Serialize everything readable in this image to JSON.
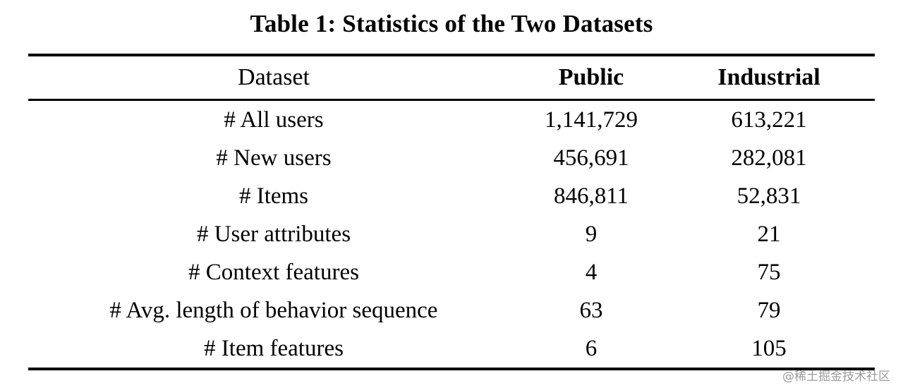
{
  "title": "Table 1: Statistics of the Two Datasets",
  "table": {
    "headers": {
      "dataset": "Dataset",
      "public": "Public",
      "industrial": "Industrial"
    },
    "rows": [
      {
        "label": "# All users",
        "public": "1,141,729",
        "industrial": "613,221"
      },
      {
        "label": "# New users",
        "public": "456,691",
        "industrial": "282,081"
      },
      {
        "label": "# Items",
        "public": "846,811",
        "industrial": "52,831"
      },
      {
        "label": "# User attributes",
        "public": "9",
        "industrial": "21"
      },
      {
        "label": "# Context features",
        "public": "4",
        "industrial": "75"
      },
      {
        "label": "# Avg. length of behavior sequence",
        "public": "63",
        "industrial": "79"
      },
      {
        "label": "# Item features",
        "public": "6",
        "industrial": "105"
      }
    ]
  },
  "watermark": "@稀土掘金技术社区",
  "chart_data": {
    "type": "table",
    "title": "Table 1: Statistics of the Two Datasets",
    "columns": [
      "Dataset",
      "Public",
      "Industrial"
    ],
    "rows": [
      [
        "# All users",
        "1,141,729",
        "613,221"
      ],
      [
        "# New users",
        "456,691",
        "282,081"
      ],
      [
        "# Items",
        "846,811",
        "52,831"
      ],
      [
        "# User attributes",
        "9",
        "21"
      ],
      [
        "# Context features",
        "4",
        "75"
      ],
      [
        "# Avg. length of behavior sequence",
        "63",
        "79"
      ],
      [
        "# Item features",
        "6",
        "105"
      ]
    ]
  }
}
